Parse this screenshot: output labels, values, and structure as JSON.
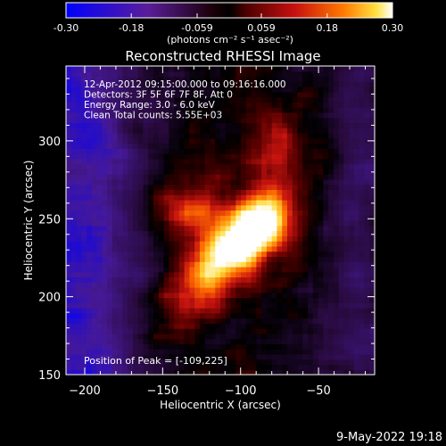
{
  "colorbar": {
    "ticks": [
      -0.3,
      -0.18,
      -0.059,
      0.059,
      0.18,
      0.3
    ],
    "tick_labels": [
      "-0.30",
      "-0.18",
      "-0.059",
      "0.059",
      "0.18",
      "0.30"
    ],
    "range": [
      -0.3,
      0.3
    ],
    "unit_label": "(photons cm⁻² s⁻¹ asec⁻²)"
  },
  "chart_data": {
    "type": "heatmap",
    "title": "Reconstructed RHESSI Image",
    "xlabel": "Heliocentric X (arcsec)",
    "ylabel": "Heliocentric Y (arcsec)",
    "xlim": [
      -212,
      -14
    ],
    "ylim": [
      150,
      348
    ],
    "xticks": [
      -200,
      -150,
      -100,
      -50
    ],
    "yticks": [
      150,
      200,
      250,
      300
    ],
    "colormap": "gnuplot-like (blue-purple-red-orange-yellow-white)",
    "value_range": [
      -0.3,
      0.3
    ],
    "peak": {
      "x": -109,
      "y": 225
    },
    "annotations": [
      "12-Apr-2012 09:15:00.000 to 09:16:16.000",
      "Detectors: 3F 5F 6F 7F 8F, Att 0",
      "Energy Range: 3.0 - 6.0 keV",
      "Clean     Total counts: 5.55E+03"
    ],
    "peak_label": "Position of Peak = [-109,225]"
  },
  "footer": {
    "date": "9-May-2022 19:18"
  }
}
